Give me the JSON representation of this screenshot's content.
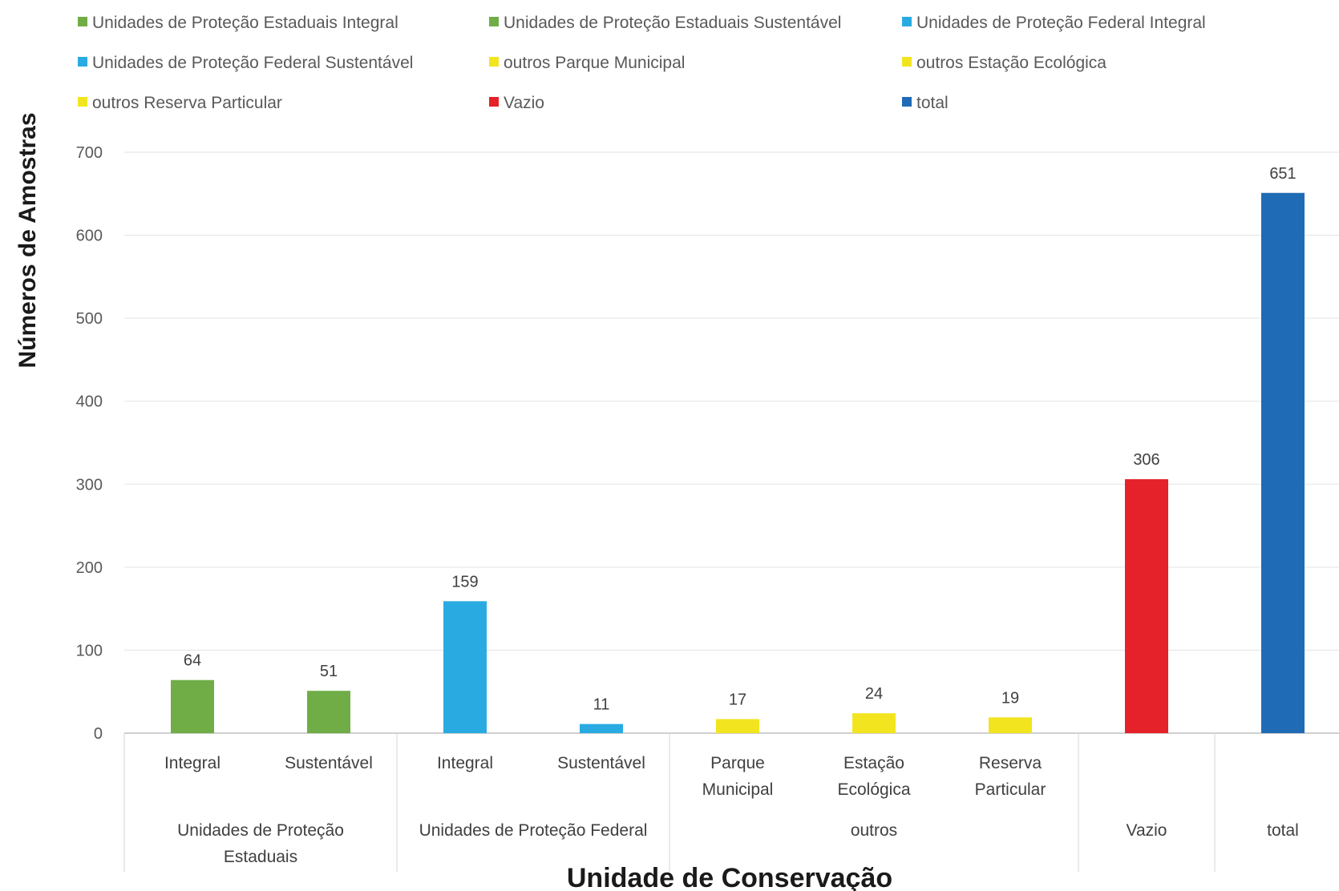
{
  "chart_data": {
    "type": "bar",
    "xlabel": "Unidade de Conservação",
    "ylabel": "Números de Amostras",
    "ylim": [
      0,
      700
    ],
    "yticks": [
      0,
      100,
      200,
      300,
      400,
      500,
      600,
      700
    ],
    "grid": true,
    "legend_position": "top",
    "legend": [
      {
        "label": "Unidades de Proteção Estaduais Integral",
        "color": "#70AD47"
      },
      {
        "label": "Unidades de Proteção Estaduais Sustentável",
        "color": "#70AD47"
      },
      {
        "label": "Unidades de Proteção Federal Integral",
        "color": "#29ABE2"
      },
      {
        "label": "Unidades de Proteção Federal Sustentável",
        "color": "#29ABE2"
      },
      {
        "label": "outros  Parque Municipal",
        "color": "#F2E520"
      },
      {
        "label": "outros Estação Ecológica",
        "color": "#F2E520"
      },
      {
        "label": "outros Reserva Particular",
        "color": "#F2E520"
      },
      {
        "label": "Vazio",
        "color": "#E52129"
      },
      {
        "label": "total",
        "color": "#1F6BB5"
      }
    ],
    "categories": [
      {
        "label": [
          "Integral"
        ],
        "group": "Unidades de Proteção Estaduais",
        "value": 64,
        "color": "#70AD47"
      },
      {
        "label": [
          "Sustentável"
        ],
        "group": "Unidades de Proteção Estaduais",
        "value": 51,
        "color": "#70AD47"
      },
      {
        "label": [
          "Integral"
        ],
        "group": "Unidades de Proteção Federal",
        "value": 159,
        "color": "#29ABE2"
      },
      {
        "label": [
          "Sustentável"
        ],
        "group": "Unidades de Proteção Federal",
        "value": 11,
        "color": "#29ABE2"
      },
      {
        "label": [
          "Parque",
          "Municipal"
        ],
        "group": "outros",
        "value": 17,
        "color": "#F2E520"
      },
      {
        "label": [
          "Estação",
          "Ecológica"
        ],
        "group": "outros",
        "value": 24,
        "color": "#F2E520"
      },
      {
        "label": [
          "Reserva",
          "Particular"
        ],
        "group": "outros",
        "value": 19,
        "color": "#F2E520"
      },
      {
        "label": [],
        "group": "Vazio",
        "value": 306,
        "color": "#E52129"
      },
      {
        "label": [],
        "group": "total",
        "value": 651,
        "color": "#1F6BB5"
      }
    ],
    "groups": [
      {
        "label": [
          "Unidades de Proteção",
          "Estaduais"
        ],
        "count": 2
      },
      {
        "label": [
          "Unidades de Proteção Federal"
        ],
        "count": 2
      },
      {
        "label": [
          "outros"
        ],
        "count": 3
      },
      {
        "label": [
          "Vazio"
        ],
        "count": 1
      },
      {
        "label": [
          "total"
        ],
        "count": 1
      }
    ]
  }
}
